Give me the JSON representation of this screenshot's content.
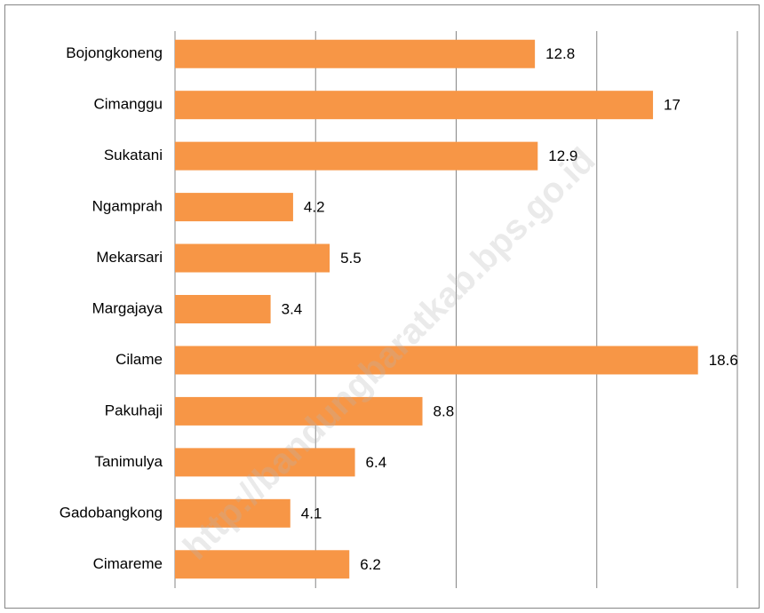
{
  "chart_data": {
    "type": "bar",
    "orientation": "horizontal",
    "categories": [
      "Bojongkoneng",
      "Cimanggu",
      "Sukatani",
      "Ngamprah",
      "Mekarsari",
      "Margajaya",
      "Cilame",
      "Pakuhaji",
      "Tanimulya",
      "Gadobangkong",
      "Cimareme"
    ],
    "values": [
      12.8,
      17,
      12.9,
      4.2,
      5.5,
      3.4,
      18.6,
      8.8,
      6.4,
      4.1,
      6.2
    ],
    "color": "#f79646",
    "xlim": [
      0,
      20
    ],
    "xticks": [
      0,
      5,
      10,
      15,
      20
    ],
    "grid": true,
    "watermark": "http://bandungbaratkab.bps.go.id"
  }
}
